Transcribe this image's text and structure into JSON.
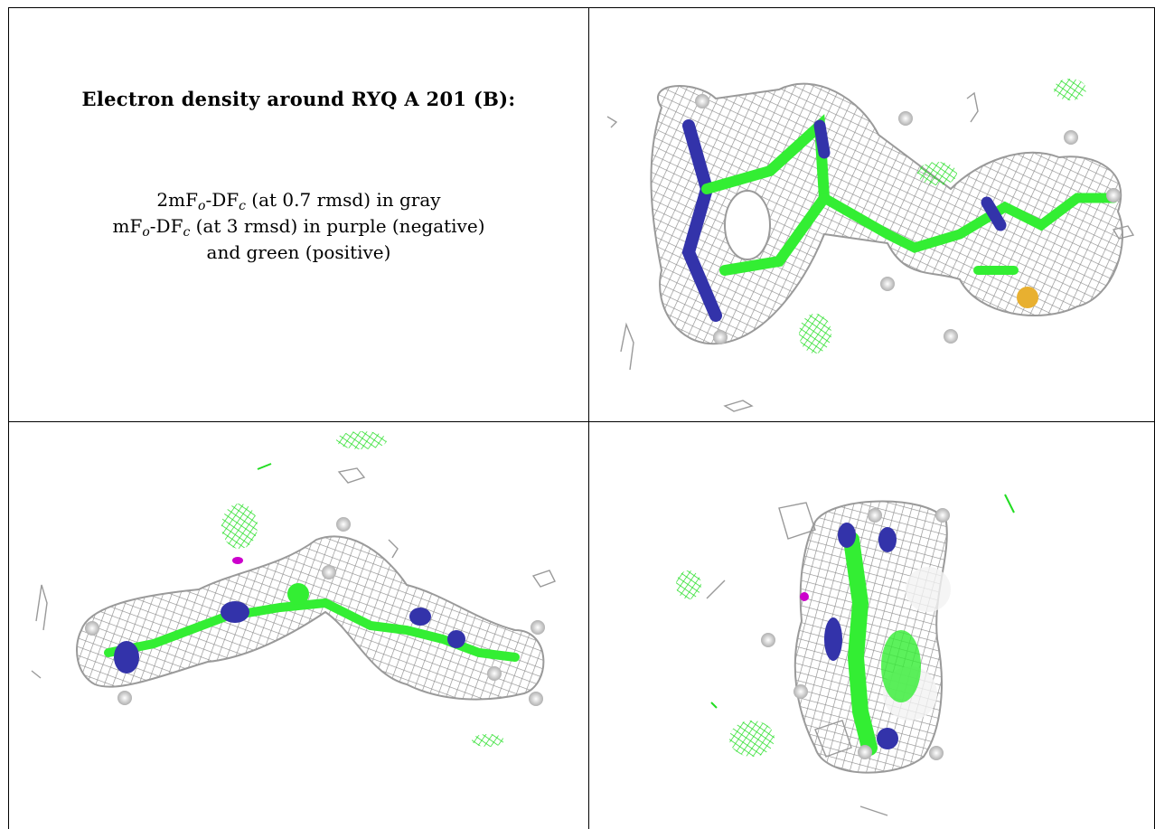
{
  "title": "Electron density around RYQ A 201 (B):",
  "legend": {
    "line1": {
      "pre": "2mF",
      "sub1": "o",
      "mid": "-DF",
      "sub2": "c",
      "post": " (at 0.7 rmsd) in gray"
    },
    "line2": {
      "pre": "mF",
      "sub1": "o",
      "mid": "-DF",
      "sub2": "c",
      "post": " (at 3 rmsd) in purple (negative)"
    },
    "line3": "and green (positive)"
  },
  "colors": {
    "mesh_gray": "#9a9a9a",
    "positive_green": "#22dd22",
    "negative_purple": "#cc00cc",
    "carbon_green": "#33ee33",
    "nitrogen_blue": "#3333aa",
    "sulfur_yellow": "#e8b030",
    "hydrogen_white": "#eeeeee"
  },
  "panels": [
    "view-top-right",
    "view-bottom-left",
    "view-bottom-right"
  ]
}
